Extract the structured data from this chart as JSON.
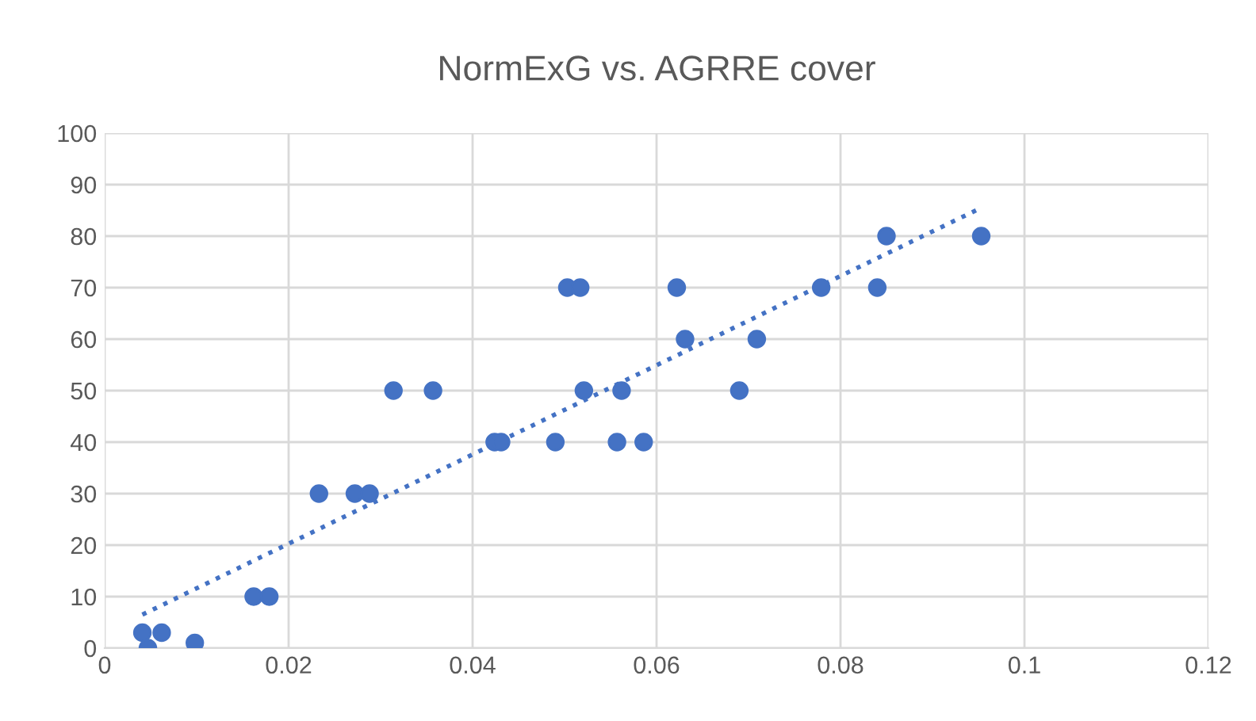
{
  "chart_data": {
    "type": "scatter",
    "title": "NormExG vs. AGRRE cover",
    "series": [
      {
        "color": "#4472c4",
        "marker": "circle",
        "x": [
          0.0041,
          0.0047,
          0.0062,
          0.0098,
          0.0162,
          0.0179,
          0.0233,
          0.0272,
          0.0288,
          0.0314,
          0.0357,
          0.0424,
          0.0431,
          0.049,
          0.0503,
          0.0517,
          0.0521,
          0.0562,
          0.0557,
          0.0586,
          0.0622,
          0.0631,
          0.069,
          0.0709,
          0.0779,
          0.084,
          0.085,
          0.0953
        ],
        "values": [
          3,
          0,
          3,
          1,
          10,
          10,
          30,
          30,
          30,
          50,
          50,
          40,
          40,
          40,
          70,
          70,
          50,
          50,
          40,
          40,
          70,
          60,
          50,
          60,
          70,
          70,
          80,
          80
        ]
      },
      {
        "type": "line",
        "color": "#4472c4",
        "line_style": "dotted",
        "x": [
          0.0041,
          0.0953
        ],
        "values": [
          6.5,
          85.5
        ]
      }
    ],
    "xlim": [
      0,
      0.12
    ],
    "xticks": [
      0,
      0.02,
      0.04,
      0.06,
      0.08,
      0.1,
      0.12
    ],
    "ylim": [
      0,
      100
    ],
    "yticks": [
      0,
      10,
      20,
      30,
      40,
      50,
      60,
      70,
      80,
      90,
      100
    ],
    "grid": true
  }
}
